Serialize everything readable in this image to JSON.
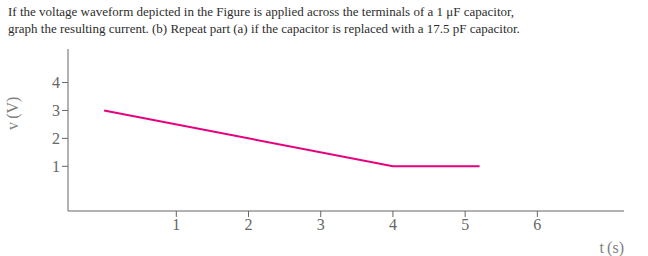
{
  "chart_data": {
    "type": "line",
    "title": "If the voltage waveform depicted in the Figure is applied across the terminals of a 1 μF capacitor,",
    "subtitle": "graph the resulting current. (b) Repeat part (a) if the capacitor is replaced with a 17.5 pF capacitor.",
    "xlabel": "t (s)",
    "ylabel": "v (V)",
    "x": [
      0,
      4,
      4,
      5.2
    ],
    "values": [
      3,
      1,
      1,
      1
    ],
    "color": "#e6007e",
    "xlim": [
      -0.5,
      7.2
    ],
    "ylim": [
      -0.6,
      5.2
    ],
    "xticks": [
      1,
      2,
      3,
      4,
      5,
      6
    ],
    "yticks": [
      1,
      2,
      3,
      4
    ],
    "grid": false
  }
}
